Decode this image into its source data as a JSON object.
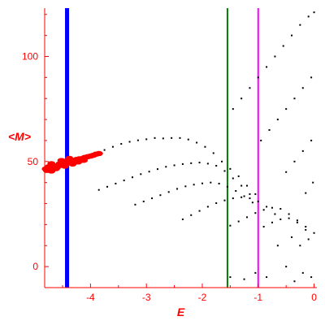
{
  "chart_data": {
    "type": "scatter",
    "xlabel": "E",
    "ylabel": "<M>",
    "xlim": [
      -4.82,
      0.05
    ],
    "ylim": [
      -10,
      123
    ],
    "x_ticks": [
      -4,
      -3,
      -2,
      -1,
      0
    ],
    "y_ticks": [
      0,
      50,
      100
    ],
    "axis_color": "#ff0000",
    "grid": false,
    "vertical_lines": [
      {
        "x": -4.42,
        "color": "#0000ff"
      },
      {
        "x": -1.55,
        "color": "#008000"
      },
      {
        "x": -1.0,
        "color": "#ff00ff"
      }
    ],
    "series": [
      {
        "color": "#ff0000",
        "marker": "cluster",
        "points": [
          [
            -4.8,
            46.5
          ],
          [
            -4.75,
            47.5
          ],
          [
            -4.7,
            46.8
          ],
          [
            -4.65,
            48.0
          ],
          [
            -4.6,
            47.2
          ],
          [
            -4.55,
            49.0
          ],
          [
            -4.5,
            48.2
          ],
          [
            -4.45,
            50.0
          ],
          [
            -4.4,
            49.3
          ],
          [
            -4.35,
            50.8
          ],
          [
            -4.3,
            50.2
          ],
          [
            -4.25,
            51.0
          ],
          [
            -4.2,
            51.3
          ],
          [
            -4.15,
            51.4
          ],
          [
            -4.1,
            52.0
          ],
          [
            -4.05,
            52.3
          ],
          [
            -4.0,
            52.6
          ],
          [
            -3.95,
            53.0
          ],
          [
            -3.9,
            53.5
          ],
          [
            -3.85,
            53.8
          ],
          [
            -4.78,
            45.8
          ],
          [
            -4.7,
            49.0
          ],
          [
            -4.62,
            46.6
          ],
          [
            -4.52,
            50.5
          ],
          [
            -4.46,
            47.8
          ],
          [
            -4.38,
            51.5
          ],
          [
            -4.32,
            48.8
          ],
          [
            -4.22,
            49.8
          ],
          [
            -4.12,
            50.6
          ],
          [
            -4.7,
            45.5
          ]
        ]
      },
      {
        "color": "#000000",
        "marker": "dot",
        "points": [
          [
            -3.75,
            55.5
          ],
          [
            -3.6,
            57.0
          ],
          [
            -3.45,
            58.4
          ],
          [
            -3.3,
            59.4
          ],
          [
            -3.15,
            60.1
          ],
          [
            -3.0,
            60.6
          ],
          [
            -2.85,
            61.2
          ],
          [
            -2.7,
            61.0
          ],
          [
            -2.55,
            61.2
          ],
          [
            -2.4,
            61.2
          ],
          [
            -2.25,
            60.5
          ],
          [
            -2.1,
            59.0
          ],
          [
            -1.95,
            57.0
          ],
          [
            -1.8,
            54.0
          ],
          [
            -1.65,
            50.0
          ],
          [
            -1.5,
            46.5
          ],
          [
            -1.35,
            43.0
          ],
          [
            -1.2,
            38.5
          ],
          [
            -1.05,
            34.5
          ],
          [
            -3.85,
            36.5
          ],
          [
            -3.7,
            38.0
          ],
          [
            -3.55,
            39.5
          ],
          [
            -3.4,
            41.0
          ],
          [
            -3.25,
            42.5
          ],
          [
            -3.1,
            44.0
          ],
          [
            -2.95,
            45.2
          ],
          [
            -2.8,
            46.4
          ],
          [
            -2.65,
            47.5
          ],
          [
            -2.5,
            48.2
          ],
          [
            -2.35,
            48.8
          ],
          [
            -2.2,
            49.2
          ],
          [
            -2.05,
            49.5
          ],
          [
            -1.9,
            49.0
          ],
          [
            -1.75,
            48.0
          ],
          [
            -1.6,
            45.5
          ],
          [
            -1.45,
            42.0
          ],
          [
            -1.3,
            38.5
          ],
          [
            -1.15,
            34.5
          ],
          [
            -3.2,
            29.5
          ],
          [
            -3.05,
            31.0
          ],
          [
            -2.9,
            32.5
          ],
          [
            -2.75,
            34.0
          ],
          [
            -2.6,
            35.5
          ],
          [
            -2.45,
            37.0
          ],
          [
            -2.3,
            38.2
          ],
          [
            -2.15,
            39.0
          ],
          [
            -2.0,
            39.6
          ],
          [
            -1.85,
            40.0
          ],
          [
            -1.7,
            39.5
          ],
          [
            -1.55,
            38.0
          ],
          [
            -1.4,
            36.0
          ],
          [
            -1.25,
            33.5
          ],
          [
            -1.1,
            30.5
          ],
          [
            -2.35,
            22.5
          ],
          [
            -2.2,
            24.5
          ],
          [
            -2.05,
            26.5
          ],
          [
            -1.9,
            28.5
          ],
          [
            -1.75,
            30.2
          ],
          [
            -1.6,
            31.5
          ],
          [
            -1.45,
            32.5
          ],
          [
            -1.3,
            33.0
          ],
          [
            -1.15,
            32.5
          ],
          [
            -1.0,
            31.0
          ],
          [
            -0.85,
            28.5
          ],
          [
            -0.7,
            25.0
          ],
          [
            -1.5,
            19.5
          ],
          [
            -1.35,
            21.5
          ],
          [
            -1.2,
            23.5
          ],
          [
            -1.05,
            25.5
          ],
          [
            -0.9,
            27.0
          ],
          [
            -0.75,
            28.0
          ],
          [
            -0.6,
            27.5
          ],
          [
            -0.45,
            25.0
          ],
          [
            -0.3,
            22.0
          ],
          [
            -0.15,
            19.0
          ],
          [
            -0.9,
            19.0
          ],
          [
            -0.75,
            21.0
          ],
          [
            -0.6,
            22.5
          ],
          [
            -0.45,
            23.0
          ],
          [
            -0.3,
            21.0
          ],
          [
            -1.45,
            75.0
          ],
          [
            -1.3,
            80.0
          ],
          [
            -1.15,
            85.0
          ],
          [
            -1.0,
            90.0
          ],
          [
            -0.85,
            95.0
          ],
          [
            -0.7,
            100.0
          ],
          [
            -0.55,
            105.0
          ],
          [
            -0.4,
            110.0
          ],
          [
            -0.25,
            115.0
          ],
          [
            -0.1,
            119.0
          ],
          [
            0.0,
            121.0
          ],
          [
            -0.95,
            60.0
          ],
          [
            -0.8,
            65.0
          ],
          [
            -0.65,
            70.0
          ],
          [
            -0.5,
            75.0
          ],
          [
            -0.35,
            80.0
          ],
          [
            -0.2,
            85.0
          ],
          [
            -0.05,
            90.0
          ],
          [
            -0.5,
            45.0
          ],
          [
            -0.35,
            50.0
          ],
          [
            -0.2,
            55.0
          ],
          [
            -0.05,
            60.0
          ],
          [
            -0.15,
            35.0
          ],
          [
            -0.02,
            40.0
          ],
          [
            -1.5,
            -5.0
          ],
          [
            -1.25,
            -6.0
          ],
          [
            -1.05,
            -3.0
          ],
          [
            -0.85,
            -5.0
          ],
          [
            -0.5,
            0.0
          ],
          [
            -0.35,
            -7.0
          ],
          [
            -0.2,
            -3.0
          ],
          [
            -0.05,
            -5.0
          ],
          [
            -0.65,
            10.0
          ],
          [
            -0.25,
            10.0
          ],
          [
            -0.1,
            13.0
          ],
          [
            0.0,
            16.0
          ],
          [
            -0.4,
            14.0
          ],
          [
            -0.15,
            17.5
          ]
        ]
      }
    ]
  }
}
